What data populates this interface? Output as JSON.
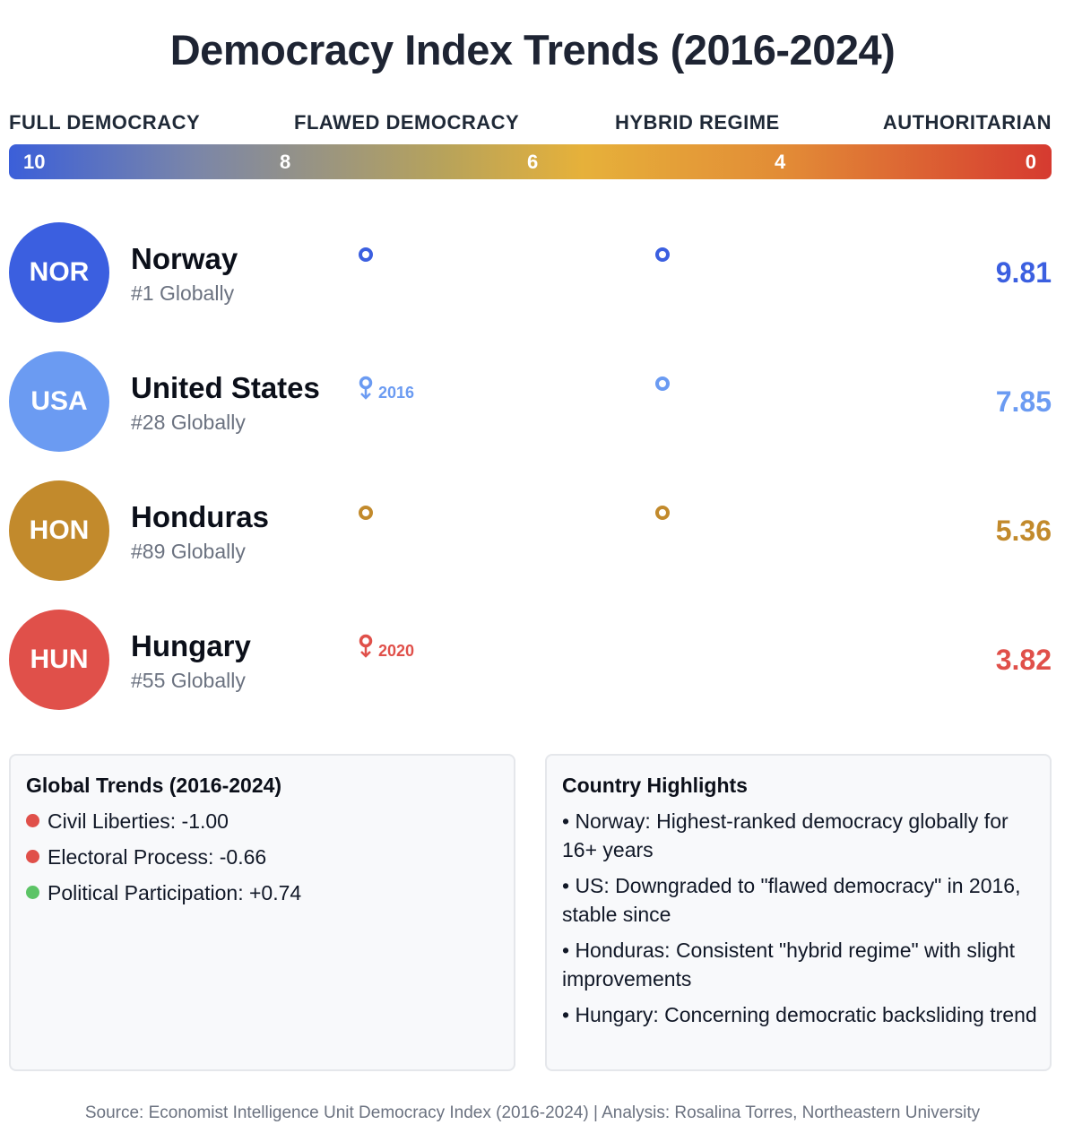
{
  "title": "Democracy Index Trends (2016-2024)",
  "scale": {
    "categories": [
      "FULL DEMOCRACY",
      "FLAWED DEMOCRACY",
      "HYBRID REGIME",
      "AUTHORITARIAN"
    ],
    "ticks": [
      "10",
      "8",
      "6",
      "4",
      "0"
    ],
    "gradient_colors": [
      "#3b5fd9",
      "#e6b13a",
      "#d63a30"
    ]
  },
  "chart_data": {
    "type": "scatter",
    "title": "Democracy Index Trends (2016-2024)",
    "series": [
      {
        "code": "NOR",
        "name": "Norway",
        "rank": "#1 Globally",
        "score": "9.81",
        "color": "#3b5fe0",
        "annotation": ""
      },
      {
        "code": "USA",
        "name": "United States",
        "rank": "#28 Globally",
        "score": "7.85",
        "color": "#6b9bf2",
        "annotation": "2016"
      },
      {
        "code": "HON",
        "name": "Honduras",
        "rank": "#89 Globally",
        "score": "5.36",
        "color": "#c28a2c",
        "annotation": ""
      },
      {
        "code": "HUN",
        "name": "Hungary",
        "rank": "#55 Globally",
        "score": "3.82",
        "color": "#e0504a",
        "annotation": "2020"
      }
    ]
  },
  "panels": {
    "trends": {
      "title": "Global Trends (2016-2024)",
      "items": [
        {
          "label": "Civil Liberties: -1.00",
          "color": "#e0504a"
        },
        {
          "label": "Electoral Process: -0.66",
          "color": "#e0504a"
        },
        {
          "label": "Political Participation: +0.74",
          "color": "#5cc466"
        }
      ]
    },
    "highlights": {
      "title": "Country Highlights",
      "items": [
        "• Norway: Highest-ranked democracy globally for 16+ years",
        "• US: Downgraded to \"flawed democracy\" in 2016, stable since",
        "• Honduras: Consistent \"hybrid regime\" with slight improvements",
        "• Hungary: Concerning democratic backsliding trend"
      ]
    }
  },
  "footer": "Source: Economist Intelligence Unit Democracy Index (2016-2024) | Analysis: Rosalina Torres, Northeastern University"
}
